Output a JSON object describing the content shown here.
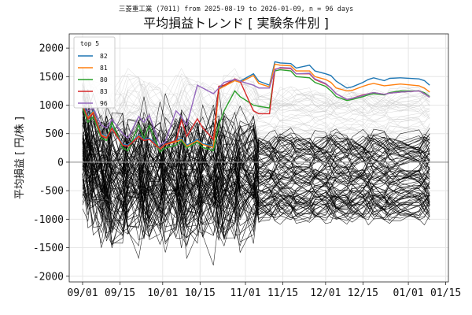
{
  "chart_data": {
    "type": "line",
    "supertitle": "三菱重工業 (7011) from 2025-08-19 to 2026-01-09, n = 96 days",
    "title": "平均損益トレンド [ 実験条件別 ]",
    "ylabel": "平均損益 [ 円/株 ]",
    "xlabel": "",
    "x_ticks": [
      "09/01",
      "09/15",
      "10/01",
      "10/15",
      "11/01",
      "11/15",
      "12/01",
      "12/15",
      "01/01",
      "01/15"
    ],
    "x_tick_dates": [
      "2025-09-01",
      "2025-09-15",
      "2025-10-01",
      "2025-10-15",
      "2025-11-01",
      "2025-11-15",
      "2025-12-01",
      "2025-12-15",
      "2026-01-01",
      "2026-01-15"
    ],
    "y_ticks": [
      2000,
      1500,
      1000,
      500,
      0,
      -500,
      -1000,
      -1500,
      -2000
    ],
    "xlim": [
      "2025-08-27",
      "2026-01-16"
    ],
    "ylim": [
      -2100,
      2250
    ],
    "grid": true,
    "legend": {
      "title": "top 5",
      "placement": "top-left"
    },
    "colors": {
      "82": "#1f77b4",
      "81": "#ff7f0e",
      "80": "#2ca02c",
      "83": "#d62728",
      "96": "#9467bd",
      "others": "#000000",
      "zero_line": "#999999"
    },
    "series": [
      {
        "name": "82",
        "color": "#1f77b4",
        "x": [
          "2025-09-01",
          "2025-09-03",
          "2025-09-05",
          "2025-09-08",
          "2025-09-10",
          "2025-09-12",
          "2025-09-16",
          "2025-09-18",
          "2025-09-22",
          "2025-09-24",
          "2025-09-26",
          "2025-09-30",
          "2025-10-02",
          "2025-10-06",
          "2025-10-08",
          "2025-10-10",
          "2025-10-14",
          "2025-10-16",
          "2025-10-20",
          "2025-10-22",
          "2025-10-24",
          "2025-10-28",
          "2025-10-30",
          "2025-11-04",
          "2025-11-06",
          "2025-11-10",
          "2025-11-12",
          "2025-11-14",
          "2025-11-18",
          "2025-11-20",
          "2025-11-25",
          "2025-11-27",
          "2025-12-01",
          "2025-12-03",
          "2025-12-05",
          "2025-12-09",
          "2025-12-11",
          "2025-12-15",
          "2025-12-17",
          "2025-12-19",
          "2025-12-23",
          "2025-12-25",
          "2025-12-29",
          "2026-01-05",
          "2026-01-07",
          "2026-01-09"
        ],
        "y": [
          1050,
          800,
          900,
          500,
          450,
          620,
          320,
          300,
          480,
          400,
          420,
          250,
          330,
          380,
          420,
          300,
          400,
          330,
          280,
          1300,
          1350,
          1450,
          1420,
          1550,
          1420,
          1350,
          1760,
          1740,
          1730,
          1650,
          1700,
          1600,
          1550,
          1520,
          1420,
          1300,
          1320,
          1400,
          1450,
          1480,
          1430,
          1470,
          1480,
          1460,
          1430,
          1350
        ]
      },
      {
        "name": "81",
        "color": "#ff7f0e",
        "x": [
          "2025-09-01",
          "2025-09-03",
          "2025-09-05",
          "2025-09-08",
          "2025-09-10",
          "2025-09-12",
          "2025-09-16",
          "2025-09-18",
          "2025-09-22",
          "2025-09-24",
          "2025-09-26",
          "2025-09-30",
          "2025-10-02",
          "2025-10-06",
          "2025-10-08",
          "2025-10-10",
          "2025-10-14",
          "2025-10-16",
          "2025-10-20",
          "2025-10-22",
          "2025-10-24",
          "2025-10-28",
          "2025-10-30",
          "2025-11-04",
          "2025-11-06",
          "2025-11-10",
          "2025-11-12",
          "2025-11-14",
          "2025-11-18",
          "2025-11-20",
          "2025-11-25",
          "2025-11-27",
          "2025-12-01",
          "2025-12-03",
          "2025-12-05",
          "2025-12-09",
          "2025-12-11",
          "2025-12-15",
          "2025-12-17",
          "2025-12-19",
          "2025-12-23",
          "2025-12-25",
          "2025-12-29",
          "2026-01-05",
          "2026-01-07",
          "2026-01-09"
        ],
        "y": [
          1000,
          780,
          880,
          480,
          430,
          600,
          300,
          280,
          460,
          380,
          400,
          230,
          310,
          360,
          400,
          280,
          380,
          310,
          260,
          1280,
          1330,
          1430,
          1400,
          1520,
          1380,
          1320,
          1720,
          1700,
          1690,
          1600,
          1600,
          1500,
          1450,
          1400,
          1300,
          1250,
          1260,
          1330,
          1360,
          1380,
          1340,
          1350,
          1370,
          1340,
          1300,
          1230
        ]
      },
      {
        "name": "80",
        "color": "#2ca02c",
        "x": [
          "2025-09-01",
          "2025-09-03",
          "2025-09-05",
          "2025-09-08",
          "2025-09-10",
          "2025-09-12",
          "2025-09-16",
          "2025-09-18",
          "2025-09-22",
          "2025-09-24",
          "2025-09-26",
          "2025-09-30",
          "2025-10-02",
          "2025-10-06",
          "2025-10-08",
          "2025-10-10",
          "2025-10-14",
          "2025-10-16",
          "2025-10-20",
          "2025-10-22",
          "2025-10-24",
          "2025-10-28",
          "2025-10-30",
          "2025-11-04",
          "2025-11-06",
          "2025-11-10",
          "2025-11-12",
          "2025-11-14",
          "2025-11-18",
          "2025-11-20",
          "2025-11-25",
          "2025-11-27",
          "2025-12-01",
          "2025-12-03",
          "2025-12-05",
          "2025-12-09",
          "2025-12-11",
          "2025-12-15",
          "2025-12-17",
          "2025-12-19",
          "2025-12-23",
          "2025-12-25",
          "2025-12-29",
          "2026-01-05",
          "2026-01-07",
          "2026-01-09"
        ],
        "y": [
          950,
          700,
          800,
          420,
          380,
          700,
          250,
          200,
          650,
          420,
          640,
          180,
          250,
          300,
          380,
          250,
          350,
          260,
          200,
          650,
          900,
          1250,
          1150,
          1000,
          980,
          950,
          1600,
          1620,
          1600,
          1500,
          1480,
          1400,
          1330,
          1250,
          1150,
          1080,
          1100,
          1150,
          1180,
          1200,
          1180,
          1220,
          1250,
          1250,
          1220,
          1150
        ]
      },
      {
        "name": "83",
        "color": "#d62728",
        "x": [
          "2025-09-01",
          "2025-09-03",
          "2025-09-05",
          "2025-09-08",
          "2025-09-10",
          "2025-09-12",
          "2025-09-16",
          "2025-09-18",
          "2025-09-22",
          "2025-09-24",
          "2025-09-26",
          "2025-09-30",
          "2025-10-02",
          "2025-10-06",
          "2025-10-08",
          "2025-10-10",
          "2025-10-14",
          "2025-10-16",
          "2025-10-20",
          "2025-10-22",
          "2025-10-24",
          "2025-10-28",
          "2025-10-30",
          "2025-11-04",
          "2025-11-06",
          "2025-11-10",
          "2025-11-12",
          "2025-11-14",
          "2025-11-18",
          "2025-11-20",
          "2025-11-25",
          "2025-11-27",
          "2025-12-01",
          "2025-12-03",
          "2025-12-05",
          "2025-12-09",
          "2025-12-11",
          "2025-12-15",
          "2025-12-17",
          "2025-12-19",
          "2025-12-23",
          "2025-12-25",
          "2025-12-29",
          "2026-01-05",
          "2026-01-07",
          "2026-01-09"
        ],
        "y": [
          1000,
          760,
          860,
          460,
          420,
          590,
          300,
          280,
          450,
          380,
          400,
          240,
          320,
          380,
          740,
          450,
          760,
          600,
          400,
          1330,
          1350,
          1460,
          1420,
          900,
          850,
          850,
          1630,
          1650,
          1640,
          1550,
          1550,
          1450,
          1370,
          1300,
          1200,
          1100,
          1120,
          1180,
          1200,
          1220,
          1190,
          1210,
          1230,
          1250,
          1200,
          1140
        ]
      },
      {
        "name": "96",
        "color": "#9467bd",
        "x": [
          "2025-09-01",
          "2025-09-03",
          "2025-09-05",
          "2025-09-08",
          "2025-09-10",
          "2025-09-12",
          "2025-09-16",
          "2025-09-18",
          "2025-09-22",
          "2025-09-24",
          "2025-09-26",
          "2025-09-30",
          "2025-10-02",
          "2025-10-06",
          "2025-10-08",
          "2025-10-10",
          "2025-10-14",
          "2025-10-16",
          "2025-10-20",
          "2025-10-22",
          "2025-10-24",
          "2025-10-28",
          "2025-10-30",
          "2025-11-04",
          "2025-11-06",
          "2025-11-10",
          "2025-11-12",
          "2025-11-14",
          "2025-11-18",
          "2025-11-20",
          "2025-11-25",
          "2025-11-27",
          "2025-12-01",
          "2025-12-03",
          "2025-12-05",
          "2025-12-09",
          "2025-12-11",
          "2025-12-15",
          "2025-12-17",
          "2025-12-19",
          "2025-12-23",
          "2025-12-25",
          "2025-12-29",
          "2026-01-05",
          "2026-01-07",
          "2026-01-09"
        ],
        "y": [
          1100,
          900,
          950,
          650,
          600,
          750,
          500,
          420,
          800,
          700,
          820,
          300,
          360,
          900,
          800,
          650,
          1350,
          1300,
          1200,
          1300,
          1400,
          1450,
          1420,
          1350,
          1300,
          1300,
          1620,
          1660,
          1650,
          1550,
          1560,
          1460,
          1380,
          1300,
          1200,
          1100,
          1120,
          1170,
          1200,
          1220,
          1190,
          1210,
          1230,
          1250,
          1200,
          1140
        ]
      }
    ]
  }
}
